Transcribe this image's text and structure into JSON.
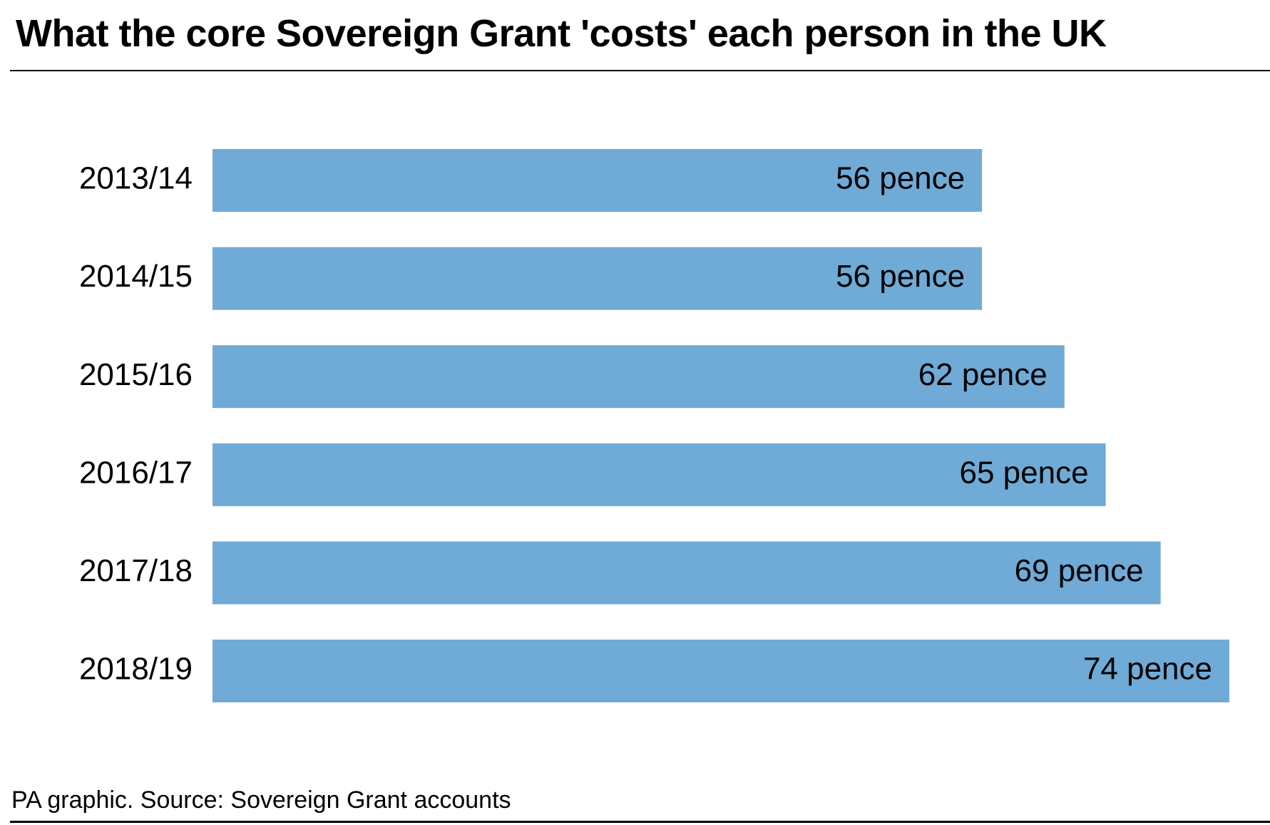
{
  "title": "What the core Sovereign Grant 'costs' each person in the UK",
  "source": "PA graphic. Source: Sovereign Grant accounts",
  "colors": {
    "bar": "#70aad6",
    "text": "#000000",
    "rule": "#000000"
  },
  "chart_data": {
    "type": "bar",
    "orientation": "horizontal",
    "title": "What the core Sovereign Grant 'costs' each person in the UK",
    "categories": [
      "2013/14",
      "2014/15",
      "2015/16",
      "2016/17",
      "2017/18",
      "2018/19"
    ],
    "values": [
      56,
      56,
      62,
      65,
      69,
      74
    ],
    "value_labels": [
      "56 pence",
      "56 pence",
      "62 pence",
      "65 pence",
      "69 pence",
      "74 pence"
    ],
    "unit": "pence",
    "xlim": [
      0,
      74
    ],
    "grid": false,
    "legend": "none",
    "xlabel": "",
    "ylabel": ""
  }
}
